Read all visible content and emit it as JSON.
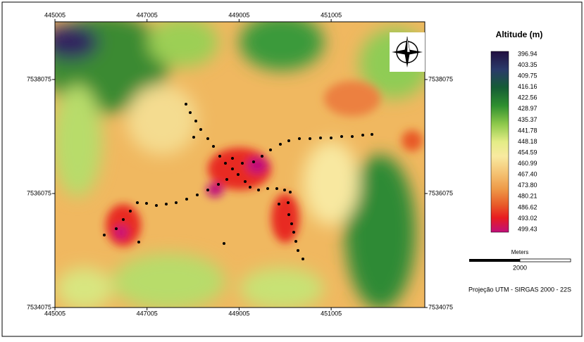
{
  "map": {
    "x_ticks": [
      "445005",
      "447005",
      "449005",
      "451005"
    ],
    "y_ticks": [
      "7538075",
      "7536075",
      "7534075"
    ],
    "legend": {
      "title": "Altitude (m)",
      "values": [
        "396.94",
        "403.35",
        "409.75",
        "416.16",
        "422.56",
        "428.97",
        "435.37",
        "441.78",
        "448.18",
        "454.59",
        "460.99",
        "467.40",
        "473.80",
        "480.21",
        "486.62",
        "493.02",
        "499.43"
      ]
    },
    "scale_bar": {
      "unit": "Meters",
      "label": "2000"
    },
    "projection": "Projeção UTM - SIRGAS 2000 - 22S"
  }
}
